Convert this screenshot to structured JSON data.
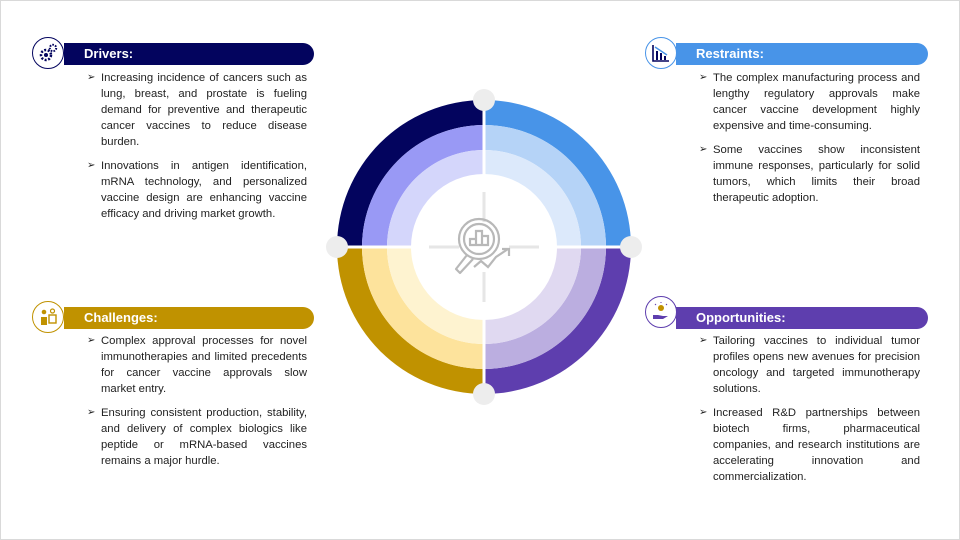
{
  "colors": {
    "drivers": "#03045e",
    "restraints": "#4894e8",
    "challenges": "#c09200",
    "opportunities": "#5e3eae"
  },
  "sections": {
    "drivers": {
      "title": "Drivers:",
      "icon": "gears-icon",
      "bullets": [
        "Increasing incidence of cancers such as lung, breast, and prostate is fueling demand for preventive and therapeutic cancer vaccines to reduce disease burden.",
        "Innovations in antigen identification, mRNA technology, and personalized vaccine design are enhancing vaccine efficacy and driving market growth."
      ]
    },
    "restraints": {
      "title": "Restraints:",
      "icon": "declining-chart-icon",
      "bullets": [
        "The complex manufacturing process and lengthy regulatory approvals make cancer vaccine development highly expensive and time-consuming.",
        "Some vaccines show inconsistent immune responses, particularly for solid tumors, which limits their broad therapeutic adoption."
      ]
    },
    "challenges": {
      "title": "Challenges:",
      "icon": "person-idea-icon",
      "bullets": [
        "Complex approval processes for novel immunotherapies and limited precedents for cancer vaccine approvals slow market entry.",
        "Ensuring consistent production, stability, and delivery of complex biologics like peptide or mRNA-based vaccines remains a major hurdle."
      ]
    },
    "opportunities": {
      "title": "Opportunities:",
      "icon": "hand-lightbulb-icon",
      "bullets": [
        "Tailoring vaccines to individual tumor profiles opens new avenues for precision oncology and targeted immunotherapy solutions.",
        "Increased R&D partnerships between biotech firms, pharmaceutical companies, and research institutions are accelerating innovation and commercialization."
      ]
    }
  },
  "center_icon": "magnifier-chart-growth-icon"
}
